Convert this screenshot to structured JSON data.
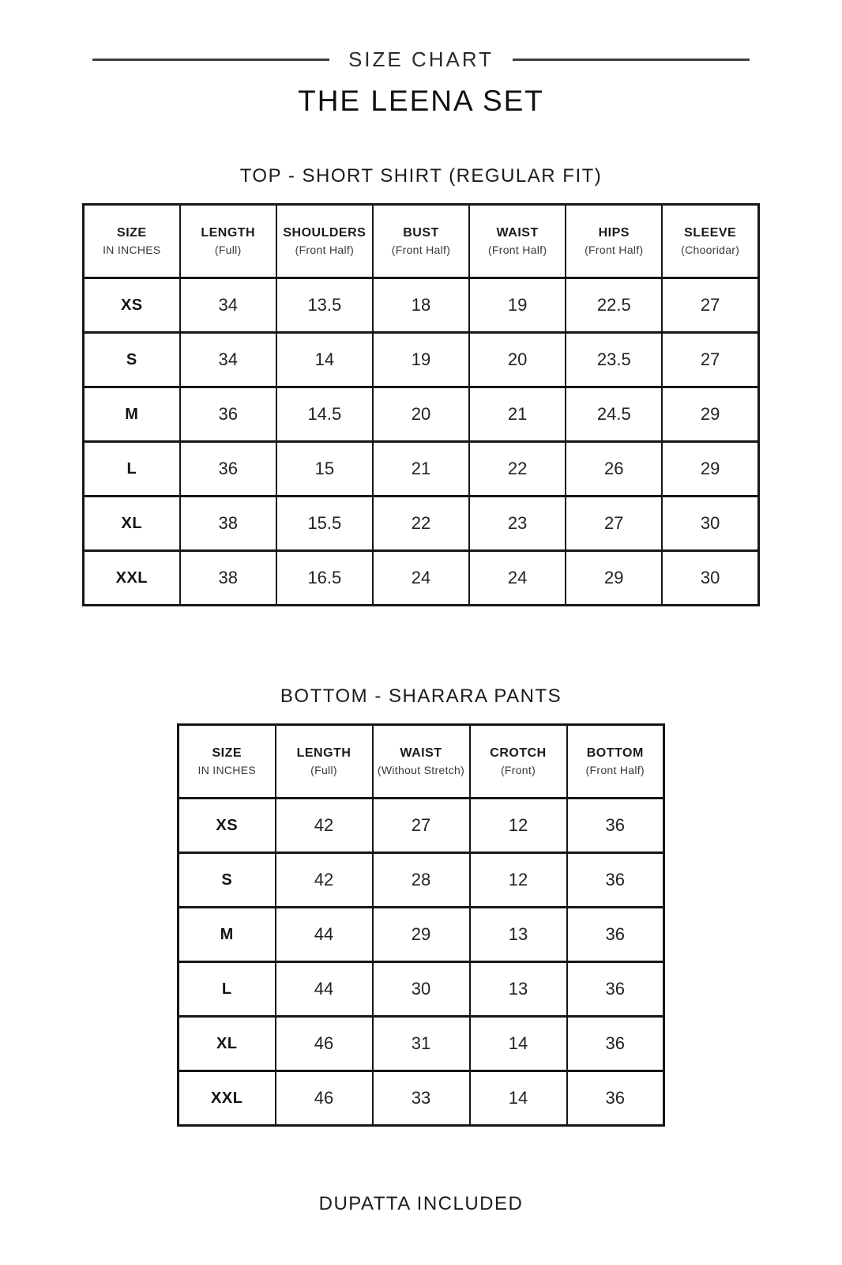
{
  "header": {
    "title": "SIZE CHART",
    "product_name": "THE LEENA SET"
  },
  "footer": {
    "note": "DUPATTA INCLUDED"
  },
  "colors": {
    "text": "#1c1c1c",
    "border": "#161616",
    "background": "#ffffff",
    "rule": "#3d3d3d"
  },
  "tables": [
    {
      "section_title": "TOP - SHORT SHIRT (REGULAR FIT)",
      "columns": [
        {
          "label": "SIZE",
          "sub": "IN INCHES"
        },
        {
          "label": "LENGTH",
          "sub": "(Full)"
        },
        {
          "label": "SHOULDERS",
          "sub": "(Front Half)"
        },
        {
          "label": "BUST",
          "sub": "(Front Half)"
        },
        {
          "label": "WAIST",
          "sub": "(Front Half)"
        },
        {
          "label": "HIPS",
          "sub": "(Front Half)"
        },
        {
          "label": "SLEEVE",
          "sub": "(Chooridar)"
        }
      ],
      "rows": [
        {
          "size": "XS",
          "values": [
            "34",
            "13.5",
            "18",
            "19",
            "22.5",
            "27"
          ]
        },
        {
          "size": "S",
          "values": [
            "34",
            "14",
            "19",
            "20",
            "23.5",
            "27"
          ]
        },
        {
          "size": "M",
          "values": [
            "36",
            "14.5",
            "20",
            "21",
            "24.5",
            "29"
          ]
        },
        {
          "size": "L",
          "values": [
            "36",
            "15",
            "21",
            "22",
            "26",
            "29"
          ]
        },
        {
          "size": "XL",
          "values": [
            "38",
            "15.5",
            "22",
            "23",
            "27",
            "30"
          ]
        },
        {
          "size": "XXL",
          "values": [
            "38",
            "16.5",
            "24",
            "24",
            "29",
            "30"
          ]
        }
      ]
    },
    {
      "section_title": "BOTTOM - SHARARA PANTS",
      "columns": [
        {
          "label": "SIZE",
          "sub": "IN INCHES"
        },
        {
          "label": "LENGTH",
          "sub": "(Full)"
        },
        {
          "label": "WAIST",
          "sub": "(Without Stretch)"
        },
        {
          "label": "CROTCH",
          "sub": "(Front)"
        },
        {
          "label": "BOTTOM",
          "sub": "(Front Half)"
        }
      ],
      "rows": [
        {
          "size": "XS",
          "values": [
            "42",
            "27",
            "12",
            "36"
          ]
        },
        {
          "size": "S",
          "values": [
            "42",
            "28",
            "12",
            "36"
          ]
        },
        {
          "size": "M",
          "values": [
            "44",
            "29",
            "13",
            "36"
          ]
        },
        {
          "size": "L",
          "values": [
            "44",
            "30",
            "13",
            "36"
          ]
        },
        {
          "size": "XL",
          "values": [
            "46",
            "31",
            "14",
            "36"
          ]
        },
        {
          "size": "XXL",
          "values": [
            "46",
            "33",
            "14",
            "36"
          ]
        }
      ]
    }
  ]
}
